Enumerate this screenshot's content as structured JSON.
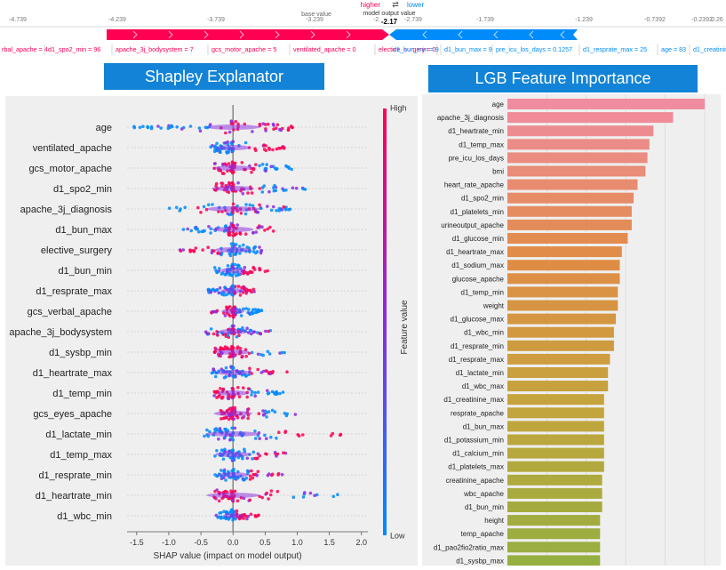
{
  "force_plot": {
    "higher_label": "higher",
    "arrows": "⇄",
    "lower_label": "lower",
    "base_value_label": "base value",
    "output_label": "model output value",
    "output_value": "-2.17",
    "axis_ticks": [
      "-4.739",
      "-4.239",
      "-3.739",
      "-3.239",
      "-2.739",
      "-2.",
      "-1.739",
      "-1.239",
      "-0.7392",
      "-0.2392",
      "0.26"
    ],
    "neg_features": [
      "rbal_apache = 4",
      "d1_spo2_min = 96",
      "apache_3j_bodysystem = 7",
      "gcs_motor_apache = 5",
      "ventilated_apache = 0",
      "elective_surgery = 0"
    ],
    "pos_features": [
      "d1_bun_min = 9",
      "d1_bun_max = 9",
      "pre_icu_los_days = 0.1257",
      "d1_resprate_max = 25",
      "age = 83",
      "d1_creatinin"
    ],
    "colors": {
      "push_higher": "#ff0052",
      "push_lower": "#008bfb"
    }
  },
  "left_title": "Shapley Explanator",
  "right_title": "LGB Feature Importance",
  "colors": {
    "title_bg": "#1283d6",
    "high": "#ff0052",
    "low": "#008bfb",
    "panel_bg": "#efefef"
  },
  "chart_data": [
    {
      "type": "scatter",
      "subtype": "shap_beeswarm",
      "xlabel": "SHAP value (impact on model output)",
      "xlim": [
        -1.65,
        2.1
      ],
      "x_ticks": [
        -1.5,
        -1.0,
        -0.5,
        0.0,
        0.5,
        1.0,
        1.5,
        2.0
      ],
      "colorbar": {
        "label": "Feature value",
        "high": "High",
        "low": "Low"
      },
      "features": [
        {
          "name": "age",
          "range": [
            -1.55,
            1.05
          ],
          "low_side": "negative"
        },
        {
          "name": "ventilated_apache",
          "range": [
            -0.35,
            0.85
          ],
          "low_side": "negative"
        },
        {
          "name": "gcs_motor_apache",
          "range": [
            -0.3,
            1.1
          ],
          "low_side": "positive"
        },
        {
          "name": "d1_spo2_min",
          "range": [
            -0.3,
            1.2
          ],
          "low_side": "positive"
        },
        {
          "name": "apache_3j_diagnosis",
          "range": [
            -1.05,
            0.95
          ],
          "low_side": "mixed"
        },
        {
          "name": "d1_bun_max",
          "range": [
            -0.8,
            0.65
          ],
          "low_side": "negative"
        },
        {
          "name": "elective_surgery",
          "range": [
            -0.85,
            0.45
          ],
          "low_side": "positive"
        },
        {
          "name": "d1_bun_min",
          "range": [
            -0.3,
            0.55
          ],
          "low_side": "negative"
        },
        {
          "name": "d1_resprate_max",
          "range": [
            -0.4,
            0.45
          ],
          "low_side": "negative"
        },
        {
          "name": "gcs_verbal_apache",
          "range": [
            -0.35,
            0.45
          ],
          "low_side": "positive"
        },
        {
          "name": "apache_3j_bodysystem",
          "range": [
            -0.45,
            0.6
          ],
          "low_side": "mixed"
        },
        {
          "name": "d1_sysbp_min",
          "range": [
            -0.3,
            0.85
          ],
          "low_side": "positive"
        },
        {
          "name": "d1_heartrate_max",
          "range": [
            -0.35,
            0.85
          ],
          "low_side": "negative"
        },
        {
          "name": "d1_temp_min",
          "range": [
            -0.3,
            0.8
          ],
          "low_side": "positive"
        },
        {
          "name": "gcs_eyes_apache",
          "range": [
            -0.2,
            1.15
          ],
          "low_side": "positive"
        },
        {
          "name": "d1_lactate_min",
          "range": [
            -0.45,
            1.85
          ],
          "low_side": "negative"
        },
        {
          "name": "d1_temp_max",
          "range": [
            -0.3,
            0.95
          ],
          "low_side": "negative"
        },
        {
          "name": "d1_resprate_min",
          "range": [
            -0.3,
            0.8
          ],
          "low_side": "negative"
        },
        {
          "name": "d1_heartrate_min",
          "range": [
            -0.3,
            1.75
          ],
          "low_side": "positive"
        },
        {
          "name": "d1_wbc_min",
          "range": [
            -0.3,
            0.4
          ],
          "low_side": "negative"
        }
      ]
    },
    {
      "type": "bar",
      "orientation": "horizontal",
      "xlim": [
        0,
        1.0
      ],
      "categories": [
        "age",
        "apache_3j_diagnosis",
        "d1_heartrate_min",
        "d1_temp_max",
        "pre_icu_los_days",
        "bmi",
        "heart_rate_apache",
        "d1_spo2_min",
        "d1_platelets_min",
        "urineoutput_apache",
        "d1_glucose_min",
        "d1_heartrate_max",
        "d1_sodium_max",
        "glucose_apache",
        "d1_temp_min",
        "weight",
        "d1_glucose_max",
        "d1_wbc_min",
        "d1_resprate_min",
        "d1_resprate_max",
        "d1_lactate_min",
        "d1_wbc_max",
        "d1_creatinine_max",
        "resprate_apache",
        "d1_bun_max",
        "d1_potassium_min",
        "d1_calcium_min",
        "d1_platelets_max",
        "creatinine_apache",
        "wbc_apache",
        "d1_bun_min",
        "height",
        "temp_apache",
        "d1_pao2fio2ratio_max",
        "d1_sysbp_max"
      ],
      "values": [
        1.0,
        0.84,
        0.74,
        0.72,
        0.71,
        0.7,
        0.66,
        0.64,
        0.63,
        0.63,
        0.61,
        0.58,
        0.57,
        0.57,
        0.56,
        0.56,
        0.55,
        0.54,
        0.54,
        0.52,
        0.51,
        0.51,
        0.49,
        0.49,
        0.49,
        0.49,
        0.49,
        0.49,
        0.48,
        0.48,
        0.48,
        0.47,
        0.47,
        0.47,
        0.47
      ]
    }
  ]
}
